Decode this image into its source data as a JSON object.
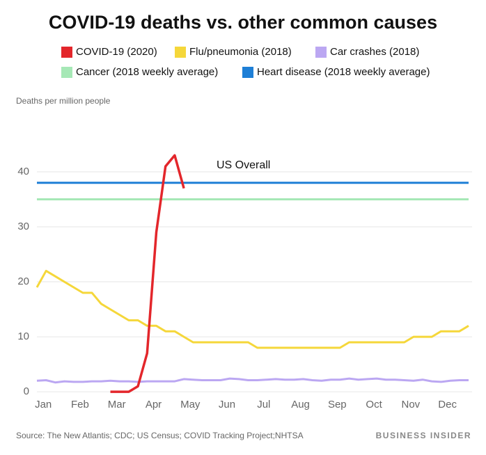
{
  "chart_data": {
    "type": "line",
    "title": "COVID-19 deaths vs. other common causes",
    "ylabel": "Deaths per million people",
    "annotation": "US Overall",
    "source": "Source: The New Atlantis; CDC; US Census; COVID Tracking Project;NHTSA",
    "brand": "BUSINESS INSIDER",
    "categories": [
      null,
      "Jan",
      null,
      null,
      null,
      "Feb",
      null,
      null,
      null,
      "Mar",
      null,
      null,
      null,
      "Apr",
      null,
      null,
      null,
      "May",
      null,
      null,
      null,
      "Jun",
      null,
      null,
      null,
      "Jul",
      null,
      null,
      null,
      "Aug",
      null,
      null,
      null,
      "Sep",
      null,
      null,
      null,
      "Oct",
      null,
      null,
      null,
      "Nov",
      null,
      null,
      null,
      "Dec",
      null,
      null
    ],
    "series": [
      {
        "name": "COVID-19 (2020)",
        "color": "#e3262b",
        "values": [
          null,
          null,
          null,
          null,
          null,
          null,
          null,
          null,
          0,
          0,
          0,
          1,
          7,
          29,
          41,
          43,
          37,
          null,
          null,
          null,
          null,
          null,
          null,
          null,
          null,
          null,
          null,
          null,
          null,
          null,
          null,
          null,
          null,
          null,
          null,
          null,
          null,
          null,
          null,
          null,
          null,
          null,
          null,
          null,
          null,
          null,
          null,
          null
        ]
      },
      {
        "name": "Flu/pneumonia (2018)",
        "color": "#f5d73a",
        "values": [
          19,
          22,
          21,
          20,
          19,
          18,
          18,
          16,
          15,
          14,
          13,
          13,
          12,
          12,
          11,
          11,
          10,
          9,
          9,
          9,
          9,
          9,
          9,
          9,
          8,
          8,
          8,
          8,
          8,
          8,
          8,
          8,
          8,
          8,
          9,
          9,
          9,
          9,
          9,
          9,
          9,
          10,
          10,
          10,
          11,
          11,
          11,
          12
        ]
      },
      {
        "name": "Car crashes (2018)",
        "color": "#bba7f2",
        "values": [
          2,
          2.1,
          1.7,
          1.9,
          1.8,
          1.8,
          1.9,
          1.9,
          2,
          1.9,
          1.9,
          1.8,
          1.9,
          1.9,
          1.9,
          1.9,
          2.3,
          2.2,
          2.1,
          2.1,
          2.1,
          2.4,
          2.3,
          2.1,
          2.1,
          2.2,
          2.3,
          2.2,
          2.2,
          2.3,
          2.1,
          2,
          2.2,
          2.2,
          2.4,
          2.2,
          2.3,
          2.4,
          2.2,
          2.2,
          2.1,
          2,
          2.2,
          1.9,
          1.8,
          2,
          2.1,
          2.1
        ]
      },
      {
        "name": "Cancer (2018 weekly average)",
        "color": "#a6e8b6",
        "values": [
          35,
          35,
          35,
          35,
          35,
          35,
          35,
          35,
          35,
          35,
          35,
          35,
          35,
          35,
          35,
          35,
          35,
          35,
          35,
          35,
          35,
          35,
          35,
          35,
          35,
          35,
          35,
          35,
          35,
          35,
          35,
          35,
          35,
          35,
          35,
          35,
          35,
          35,
          35,
          35,
          35,
          35,
          35,
          35,
          35,
          35,
          35,
          35
        ]
      },
      {
        "name": "Heart disease (2018 weekly average)",
        "color": "#1e7fd6",
        "values": [
          38,
          38,
          38,
          38,
          38,
          38,
          38,
          38,
          38,
          38,
          38,
          38,
          38,
          38,
          38,
          38,
          38,
          38,
          38,
          38,
          38,
          38,
          38,
          38,
          38,
          38,
          38,
          38,
          38,
          38,
          38,
          38,
          38,
          38,
          38,
          38,
          38,
          38,
          38,
          38,
          38,
          38,
          38,
          38,
          38,
          38,
          38,
          38
        ]
      }
    ],
    "ylim": [
      -1,
      50
    ],
    "yticks": [
      0,
      10,
      20,
      30,
      40
    ],
    "grid": true
  }
}
